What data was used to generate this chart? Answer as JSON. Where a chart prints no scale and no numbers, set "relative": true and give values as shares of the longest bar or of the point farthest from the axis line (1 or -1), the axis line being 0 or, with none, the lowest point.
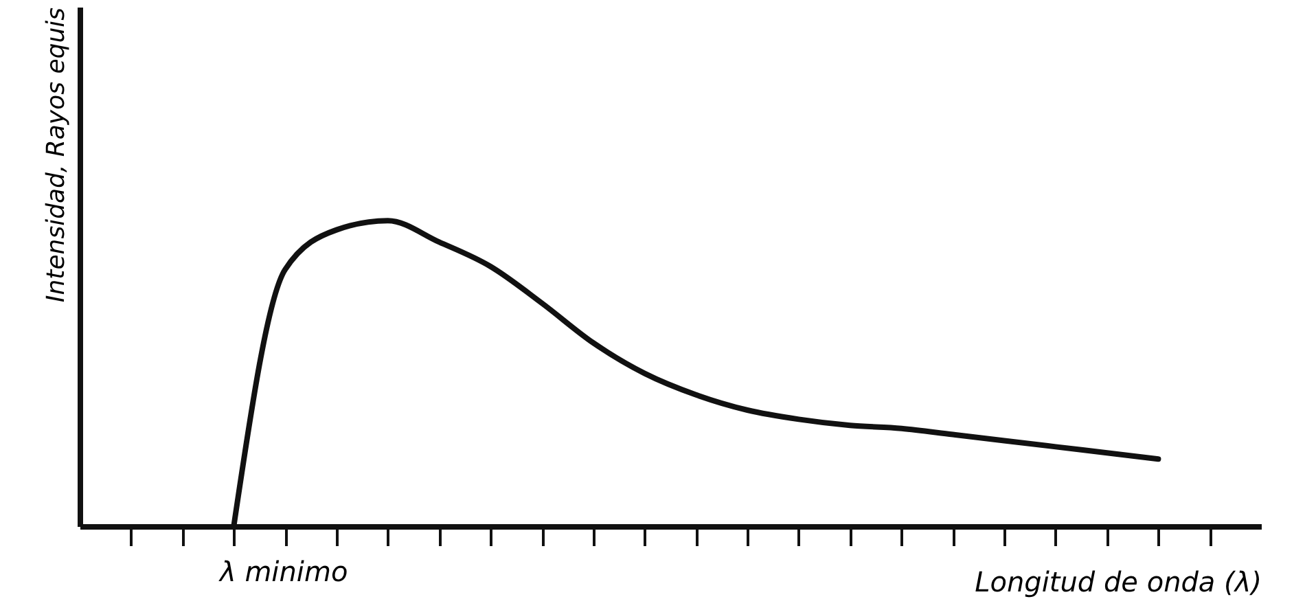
{
  "chart_data": {
    "type": "line",
    "relative": true,
    "xlabel": "Longitud de onda (λ)",
    "ylabel": "Intensidad, Rayos equis",
    "annotations": [
      "λ minimo"
    ],
    "categories": [
      null,
      null,
      null,
      null,
      null,
      null,
      null,
      null,
      null,
      null,
      null,
      null,
      null,
      null,
      null,
      null,
      null,
      null,
      null,
      null,
      null,
      null
    ],
    "series": [
      {
        "color": "#111111",
        "values": [
          null,
          null,
          0,
          0.84,
          0.97,
          1.0,
          0.93,
          0.85,
          0.73,
          0.6,
          0.5,
          0.43,
          0.38,
          0.35,
          0.33,
          0.32,
          0.3,
          0.28,
          0.26,
          0.24,
          0.22,
          null
        ]
      }
    ],
    "marker": "none",
    "line_style": "solid"
  }
}
